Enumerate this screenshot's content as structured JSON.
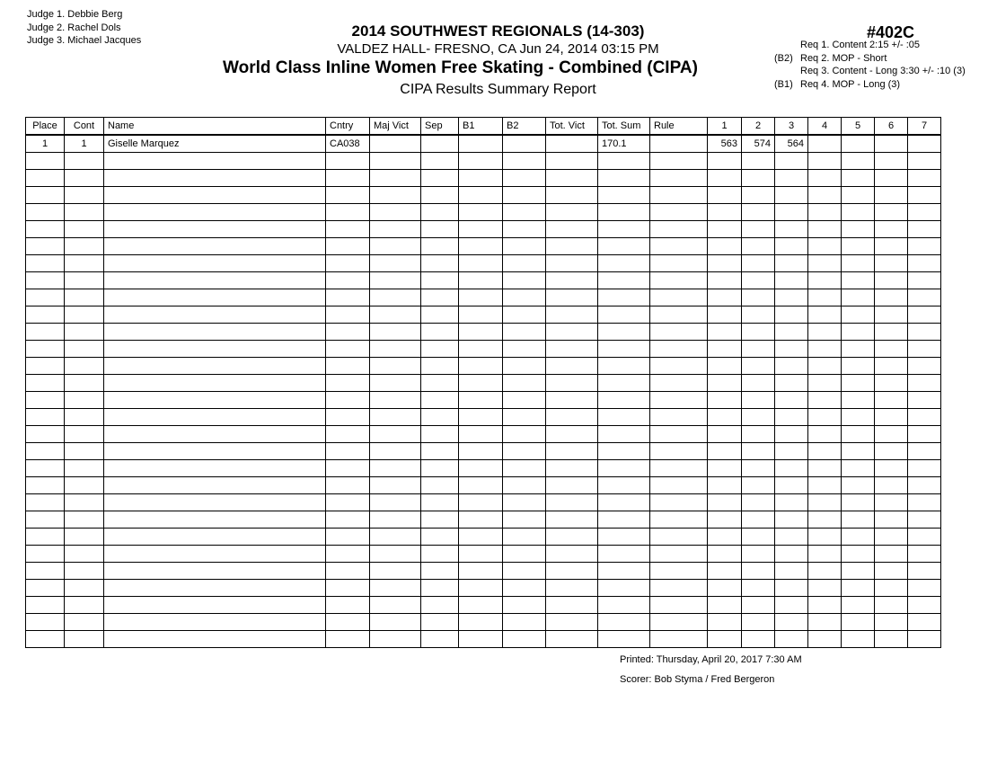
{
  "judges": [
    "Judge  1.  Debbie Berg",
    "Judge  2.  Rachel Dols",
    "Judge  3.  Michael Jacques"
  ],
  "header": {
    "title": "2014 SOUTHWEST REGIONALS (14-303)",
    "venue": "VALDEZ HALL- FRESNO, CA  Jun 24, 2014  03:15 PM",
    "event": "World Class Inline Women Free Skating - Combined (CIPA)",
    "report": "CIPA Results Summary Report",
    "code": "#402C"
  },
  "requirements": [
    {
      "prefix": "",
      "text": "Req  1.  Content 2:15 +/- :05"
    },
    {
      "prefix": "(B2)",
      "text": "Req  2.  MOP - Short"
    },
    {
      "prefix": "",
      "text": "Req  3.  Content - Long 3:30 +/- :10 (3)"
    },
    {
      "prefix": "(B1)",
      "text": "Req  4.  MOP - Long (3)"
    }
  ],
  "table": {
    "columns": [
      "Place",
      "Cont",
      "Name",
      "Cntry",
      "Maj Vict",
      "Sep",
      "B1",
      "B2",
      "Tot. Vict",
      "Tot. Sum",
      "Rule",
      "1",
      "2",
      "3",
      "4",
      "5",
      "6",
      "7"
    ],
    "rows": [
      [
        "1",
        "1",
        "Giselle Marquez",
        "CA038",
        "",
        "",
        "",
        "",
        "",
        "170.1",
        "",
        "563",
        "574",
        "564",
        "",
        "",
        "",
        ""
      ]
    ],
    "total_rows": 30
  },
  "footer": {
    "printed": "Printed:  Thursday, April 20, 2017  7:30 AM",
    "scorer": "Scorer:  Bob Styma / Fred Bergeron"
  }
}
